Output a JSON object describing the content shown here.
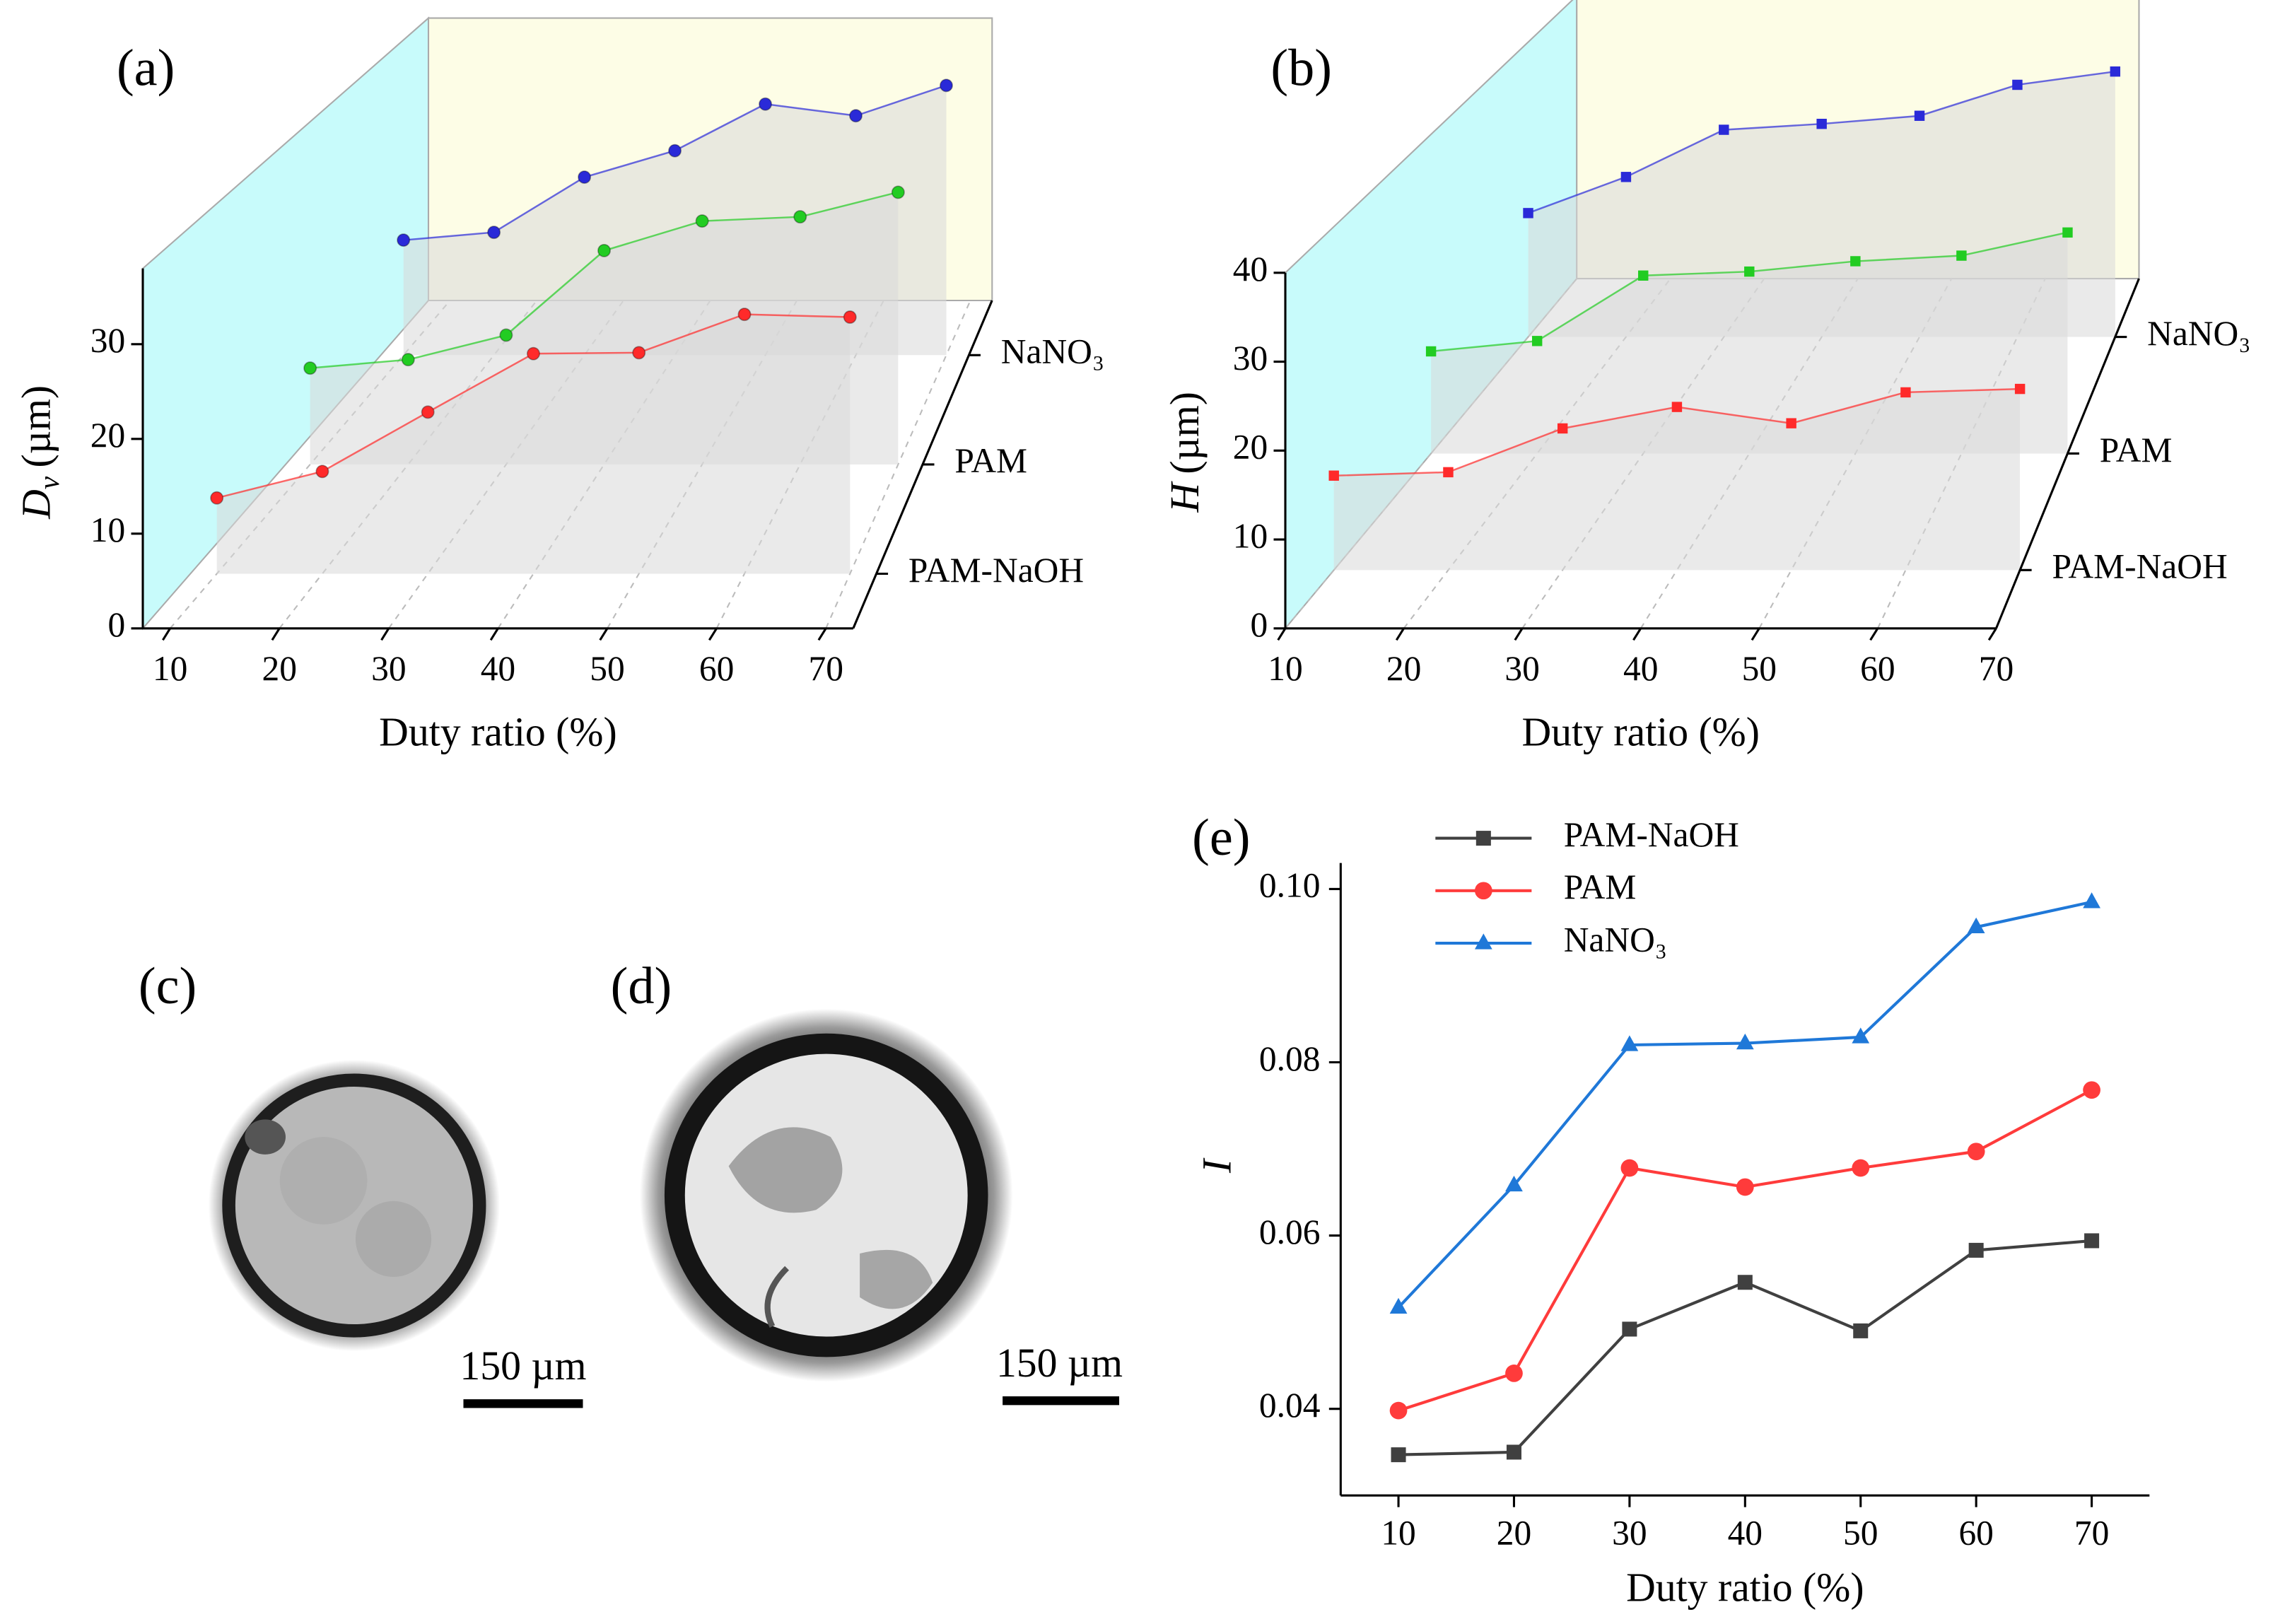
{
  "chart_data": [
    {
      "type": "line3d",
      "panel_label": "(a)",
      "x_label": "Duty ratio (%)",
      "y_label": {
        "symbol": "D",
        "subscript": "v",
        "unit": "(µm)"
      },
      "marker": "sphere",
      "x": [
        10,
        20,
        30,
        40,
        50,
        60,
        70
      ],
      "xlim": [
        7.5,
        72.5
      ],
      "xticks": [
        10,
        20,
        30,
        40,
        50,
        60,
        70
      ],
      "ylim": [
        0,
        38
      ],
      "yticks": [
        0,
        10,
        20,
        30
      ],
      "series": [
        {
          "name": "PAM-NaOH",
          "color": "#ff2a2a",
          "values": [
            8.3,
            11.2,
            17.7,
            24.1,
            24.2,
            28.4,
            28.1
          ]
        },
        {
          "name": "PAM",
          "color": "#22cc22",
          "values": [
            11.4,
            12.4,
            15.3,
            25.3,
            28.8,
            29.3,
            32.2
          ]
        },
        {
          "name": "NaNO₃",
          "color": "#2a2ad8",
          "values": [
            14.8,
            15.8,
            22.9,
            26.3,
            32.3,
            30.8,
            34.7
          ]
        }
      ]
    },
    {
      "type": "line3d",
      "panel_label": "(b)",
      "x_label": "Duty ratio (%)",
      "y_label": {
        "symbol": "H",
        "unit": "(µm)"
      },
      "marker": "square",
      "x": [
        10,
        20,
        30,
        40,
        50,
        60,
        70
      ],
      "xlim": [
        10,
        70
      ],
      "xticks": [
        10,
        20,
        30,
        40,
        50,
        60,
        70
      ],
      "ylim": [
        0,
        40
      ],
      "yticks": [
        0,
        10,
        20,
        30,
        40
      ],
      "series": [
        {
          "name": "PAM-NaOH",
          "color": "#ff2a2a",
          "values": [
            11.0,
            11.4,
            16.5,
            19.0,
            17.1,
            20.7,
            21.1
          ]
        },
        {
          "name": "PAM",
          "color": "#22cc22",
          "values": [
            12.8,
            14.1,
            22.3,
            22.8,
            24.1,
            24.8,
            27.7
          ]
        },
        {
          "name": "NaNO₃",
          "color": "#2a2ad8",
          "values": [
            16.8,
            21.7,
            28.1,
            28.9,
            30.0,
            34.2,
            36.0
          ]
        }
      ]
    },
    {
      "type": "line",
      "panel_label": "(e)",
      "x_label": "Duty ratio (%)",
      "y_label": "I",
      "legend": "upper left",
      "x": [
        10,
        20,
        30,
        40,
        50,
        60,
        70
      ],
      "xlim": [
        5,
        75
      ],
      "xticks": [
        10,
        20,
        30,
        40,
        50,
        60,
        70
      ],
      "ylim": [
        0.03,
        0.103
      ],
      "yticks": [
        0.04,
        0.06,
        0.08,
        {
          "value": 0.1,
          "label": "0.10"
        }
      ],
      "series": [
        {
          "name": "PAM-NaOH",
          "color": "#404040",
          "marker": "square",
          "values": [
            0.0347,
            0.035,
            0.0492,
            0.0546,
            0.049,
            0.0583,
            0.0594
          ]
        },
        {
          "name": "PAM",
          "color": "#ff3b3b",
          "marker": "circle",
          "values": [
            0.0398,
            0.0441,
            0.0678,
            0.0656,
            0.0678,
            0.0697,
            0.0768
          ]
        },
        {
          "name": "NaNO₃",
          "color": "#1f78d8",
          "marker": "triangle",
          "values": [
            0.0517,
            0.0658,
            0.082,
            0.0822,
            0.0829,
            0.0956,
            0.0985
          ]
        }
      ]
    }
  ],
  "images": [
    {
      "label": "(c)",
      "scale_bar": "150 µm"
    },
    {
      "label": "(d)",
      "scale_bar": "150 µm"
    }
  ]
}
